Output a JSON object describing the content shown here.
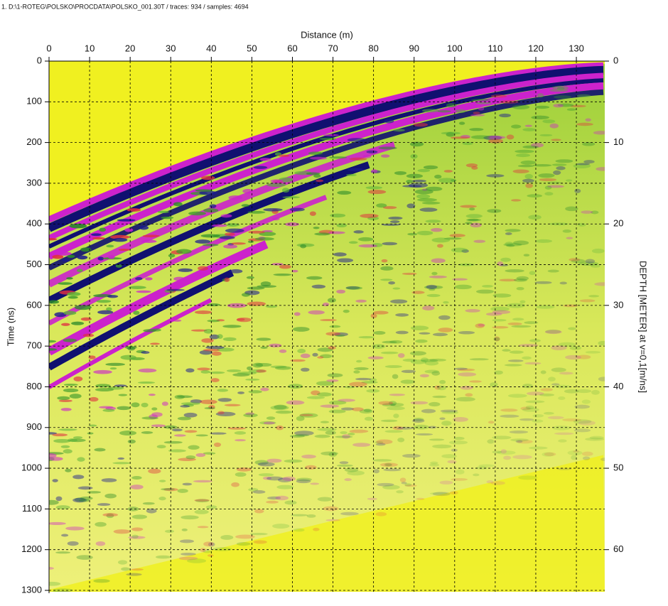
{
  "chart_data": {
    "type": "radargram",
    "title": "1. D:\\1-ROTEG\\POLSKO\\PROCDATA\\POLSKO_001.30T / traces: 934 / samples: 4694",
    "x_label": "Distance (m)",
    "y_label": "Time (ns)",
    "y2_label": "DEPTH [METER] at v=0,1[m/ns]",
    "xlim": [
      0,
      137
    ],
    "xticks": [
      0,
      10,
      20,
      30,
      40,
      50,
      60,
      70,
      80,
      90,
      100,
      110,
      120,
      130
    ],
    "ylim": [
      0,
      1300
    ],
    "yticks": [
      0,
      100,
      200,
      300,
      400,
      500,
      600,
      700,
      800,
      900,
      1000,
      1100,
      1200,
      1300
    ],
    "y2lim": [
      0,
      65
    ],
    "y2ticks": [
      0,
      10,
      20,
      30,
      40,
      50,
      60
    ],
    "grid": true
  }
}
